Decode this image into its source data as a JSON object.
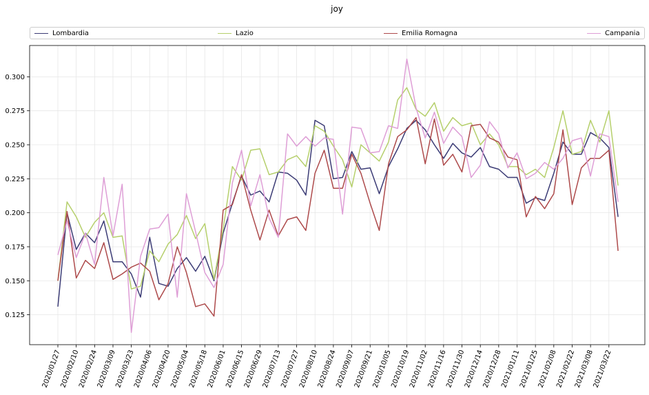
{
  "chart_data": {
    "type": "line",
    "title": "joy",
    "xlabel": "",
    "ylabel": "",
    "ylim": [
      0.103,
      0.323
    ],
    "yticks": [
      0.125,
      0.15,
      0.175,
      0.2,
      0.225,
      0.25,
      0.275,
      0.3
    ],
    "ytick_labels": [
      "0.125",
      "0.150",
      "0.175",
      "0.200",
      "0.225",
      "0.250",
      "0.275",
      "0.300"
    ],
    "grid": true,
    "legend_position": "top",
    "x_start_date": "2020/01/27",
    "x_step_days": 7,
    "xtick_labels": [
      "2020/01/27",
      "2020/02/10",
      "2020/02/24",
      "2020/03/09",
      "2020/03/23",
      "2020/04/06",
      "2020/04/20",
      "2020/05/04",
      "2020/05/18",
      "2020/06/01",
      "2020/06/15",
      "2020/06/29",
      "2020/07/13",
      "2020/07/27",
      "2020/08/10",
      "2020/08/24",
      "2020/09/07",
      "2020/09/21",
      "2020/10/05",
      "2020/10/19",
      "2020/11/02",
      "2020/11/16",
      "2020/11/30",
      "2020/12/14",
      "2020/12/28",
      "2021/01/11",
      "2021/01/25",
      "2021/02/08",
      "2021/02/22",
      "2021/03/08",
      "2021/03/22"
    ],
    "series": [
      {
        "name": "Lombardia",
        "color": "#3b3b75",
        "values": [
          0.131,
          0.2,
          0.173,
          0.185,
          0.178,
          0.194,
          0.164,
          0.164,
          0.155,
          0.138,
          0.182,
          0.148,
          0.146,
          0.159,
          0.167,
          0.157,
          0.168,
          0.15,
          0.185,
          0.207,
          0.227,
          0.213,
          0.216,
          0.208,
          0.23,
          0.229,
          0.224,
          0.213,
          0.268,
          0.264,
          0.225,
          0.226,
          0.245,
          0.232,
          0.233,
          0.214,
          0.234,
          0.247,
          0.262,
          0.268,
          0.261,
          0.25,
          0.24,
          0.251,
          0.244,
          0.241,
          0.248,
          0.234,
          0.232,
          0.226,
          0.226,
          0.207,
          0.211,
          0.209,
          0.229,
          0.252,
          0.243,
          0.243,
          0.259,
          0.255,
          0.248,
          0.197
        ]
      },
      {
        "name": "Lazio",
        "color": "#b5cf6b",
        "values": [
          0.15,
          0.208,
          0.197,
          0.182,
          0.193,
          0.2,
          0.182,
          0.183,
          0.144,
          0.146,
          0.172,
          0.164,
          0.177,
          0.184,
          0.198,
          0.181,
          0.192,
          0.151,
          0.188,
          0.234,
          0.224,
          0.246,
          0.247,
          0.228,
          0.23,
          0.239,
          0.242,
          0.234,
          0.264,
          0.26,
          0.249,
          0.239,
          0.219,
          0.25,
          0.244,
          0.238,
          0.252,
          0.283,
          0.292,
          0.276,
          0.271,
          0.281,
          0.26,
          0.27,
          0.264,
          0.266,
          0.25,
          0.258,
          0.25,
          0.234,
          0.234,
          0.228,
          0.232,
          0.226,
          0.248,
          0.275,
          0.243,
          0.245,
          0.268,
          0.252,
          0.275,
          0.22
        ]
      },
      {
        "name": "Emilia Romagna",
        "color": "#ad494a",
        "values": [
          0.15,
          0.201,
          0.152,
          0.165,
          0.159,
          0.178,
          0.151,
          0.155,
          0.16,
          0.163,
          0.157,
          0.136,
          0.148,
          0.175,
          0.156,
          0.131,
          0.133,
          0.124,
          0.202,
          0.206,
          0.228,
          0.202,
          0.18,
          0.202,
          0.183,
          0.195,
          0.197,
          0.187,
          0.229,
          0.246,
          0.218,
          0.218,
          0.243,
          0.229,
          0.207,
          0.187,
          0.236,
          0.256,
          0.261,
          0.27,
          0.236,
          0.269,
          0.235,
          0.243,
          0.23,
          0.264,
          0.265,
          0.255,
          0.252,
          0.241,
          0.239,
          0.197,
          0.212,
          0.203,
          0.214,
          0.261,
          0.206,
          0.233,
          0.24,
          0.24,
          0.246,
          0.172
        ]
      },
      {
        "name": "Campania",
        "color": "#de9ed6",
        "values": [
          0.169,
          0.194,
          0.167,
          0.185,
          0.162,
          0.226,
          0.183,
          0.221,
          0.112,
          0.168,
          0.188,
          0.189,
          0.199,
          0.138,
          0.214,
          0.186,
          0.156,
          0.145,
          0.162,
          0.222,
          0.246,
          0.205,
          0.228,
          0.196,
          0.182,
          0.258,
          0.249,
          0.256,
          0.249,
          0.255,
          0.254,
          0.199,
          0.263,
          0.262,
          0.244,
          0.245,
          0.264,
          0.262,
          0.313,
          0.277,
          0.255,
          0.274,
          0.251,
          0.263,
          0.256,
          0.226,
          0.235,
          0.267,
          0.258,
          0.233,
          0.244,
          0.225,
          0.229,
          0.237,
          0.232,
          0.24,
          0.253,
          0.255,
          0.227,
          0.258,
          0.256,
          0.208
        ]
      }
    ]
  }
}
